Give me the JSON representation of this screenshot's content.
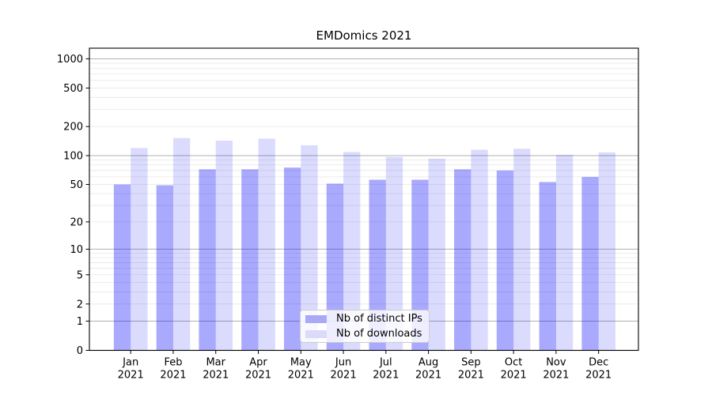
{
  "chart_data": {
    "type": "bar",
    "title": "EMDomics 2021",
    "categories": [
      "Jan",
      "Feb",
      "Mar",
      "Apr",
      "May",
      "Jun",
      "Jul",
      "Aug",
      "Sep",
      "Oct",
      "Nov",
      "Dec"
    ],
    "x_tick_second_line": "2021",
    "series": [
      {
        "name": "Nb of distinct IPs",
        "color": "#a9a9f6",
        "fill": "rgba(2,2,250,0.34)",
        "values": [
          50,
          49,
          72,
          72,
          75,
          51,
          56,
          56,
          72,
          70,
          53,
          60
        ]
      },
      {
        "name": "Nb of downloads",
        "color": "#dbdbf9",
        "fill": "rgba(2,2,250,0.14)",
        "values": [
          120,
          152,
          143,
          150,
          128,
          109,
          97,
          93,
          115,
          118,
          102,
          108
        ]
      }
    ],
    "xlabel": "",
    "ylabel": "",
    "yscale": "log1p-symlog",
    "yticks": [
      0,
      1,
      2,
      5,
      10,
      20,
      50,
      100,
      200,
      500,
      1000
    ],
    "ylim": [
      0,
      1290
    ],
    "grid": true,
    "grid_major_values": [
      1,
      10,
      100,
      1000
    ],
    "legend_position": "lower center",
    "colors": {
      "grid_major": "#b0b0b0",
      "grid_minor": "#e7e7e7",
      "axis": "#000000",
      "text": "#000000"
    }
  }
}
